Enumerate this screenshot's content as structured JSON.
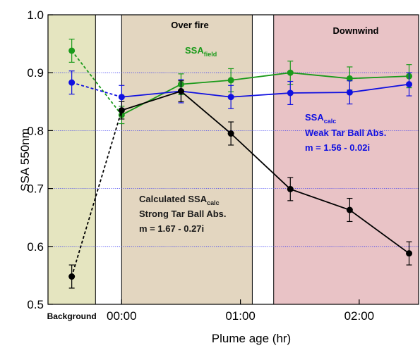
{
  "chart_data": {
    "type": "line",
    "title": "",
    "xlabel": "Plume age (hr)",
    "ylabel": "SSA 550nm",
    "ylim": [
      0.5,
      1.0
    ],
    "xlim": [
      -0.62,
      2.5
    ],
    "grid": "horizontal dotted blue lines at 0.6, 0.7, 0.8, 0.9",
    "x_ticks": [
      {
        "x": 0,
        "label": "00:00"
      },
      {
        "x": 1,
        "label": "01:00"
      },
      {
        "x": 2,
        "label": "02:00"
      }
    ],
    "x_special_label": {
      "x": -0.42,
      "label": "Background"
    },
    "y_ticks": [
      {
        "y": 0.5,
        "label": "0.5"
      },
      {
        "y": 0.6,
        "label": "0.6"
      },
      {
        "y": 0.7,
        "label": "0.7"
      },
      {
        "y": 0.8,
        "label": "0.8"
      },
      {
        "y": 0.9,
        "label": "0.9"
      },
      {
        "y": 1.0,
        "label": "1.0"
      }
    ],
    "regions": [
      {
        "label": "",
        "x0": -0.62,
        "x1": -0.22,
        "color": "#e5e5c0"
      },
      {
        "label": "Over fire",
        "x0": 0.0,
        "x1": 1.1,
        "color": "#e3d6c0"
      },
      {
        "label": "Downwind",
        "x0": 1.28,
        "x1": 2.5,
        "color": "#e9c3c6"
      }
    ],
    "series": [
      {
        "name": "SSA field",
        "color": "#1a9a1a",
        "background_point": {
          "x": -0.42,
          "y": 0.938,
          "err": 0.02
        },
        "points": [
          {
            "x": 0.0,
            "y": 0.827,
            "err": 0.015
          },
          {
            "x": 0.5,
            "y": 0.88,
            "err": 0.018
          },
          {
            "x": 0.92,
            "y": 0.887,
            "err": 0.02
          },
          {
            "x": 1.42,
            "y": 0.9,
            "err": 0.02
          },
          {
            "x": 1.92,
            "y": 0.89,
            "err": 0.02
          },
          {
            "x": 2.42,
            "y": 0.894,
            "err": 0.02
          }
        ]
      },
      {
        "name": "SSA calc, Weak Tar Ball Abs.",
        "color": "#1010e0",
        "background_point": {
          "x": -0.42,
          "y": 0.883,
          "err": 0.02
        },
        "points": [
          {
            "x": 0.0,
            "y": 0.858,
            "err": 0.02
          },
          {
            "x": 0.5,
            "y": 0.868,
            "err": 0.02
          },
          {
            "x": 0.92,
            "y": 0.858,
            "err": 0.02
          },
          {
            "x": 1.42,
            "y": 0.865,
            "err": 0.02
          },
          {
            "x": 1.92,
            "y": 0.866,
            "err": 0.02
          },
          {
            "x": 2.42,
            "y": 0.88,
            "err": 0.02
          }
        ]
      },
      {
        "name": "SSA calc, Strong Tar Ball Abs.",
        "color": "#000000",
        "background_point": {
          "x": -0.42,
          "y": 0.548,
          "err": 0.02
        },
        "points": [
          {
            "x": 0.0,
            "y": 0.835,
            "err": 0.015
          },
          {
            "x": 0.5,
            "y": 0.868,
            "err": 0.018
          },
          {
            "x": 0.92,
            "y": 0.795,
            "err": 0.02
          },
          {
            "x": 1.42,
            "y": 0.699,
            "err": 0.02
          },
          {
            "x": 1.92,
            "y": 0.663,
            "err": 0.02
          },
          {
            "x": 2.42,
            "y": 0.588,
            "err": 0.02
          }
        ]
      }
    ],
    "annotations": {
      "field": {
        "main": "SSA",
        "sub": "field",
        "color": "#1a9a1a"
      },
      "weak": {
        "main": "SSA",
        "sub": "calc",
        "line2": "Weak Tar Ball Abs.",
        "line3": "m = 1.56 - 0.02i",
        "color": "#1010e0"
      },
      "strong": {
        "main": "Calculated SSA",
        "sub": "calc",
        "line2": "Strong Tar Ball Abs.",
        "line3": "m = 1.67 - 0.27i",
        "color": "#1a1a1a"
      }
    }
  }
}
